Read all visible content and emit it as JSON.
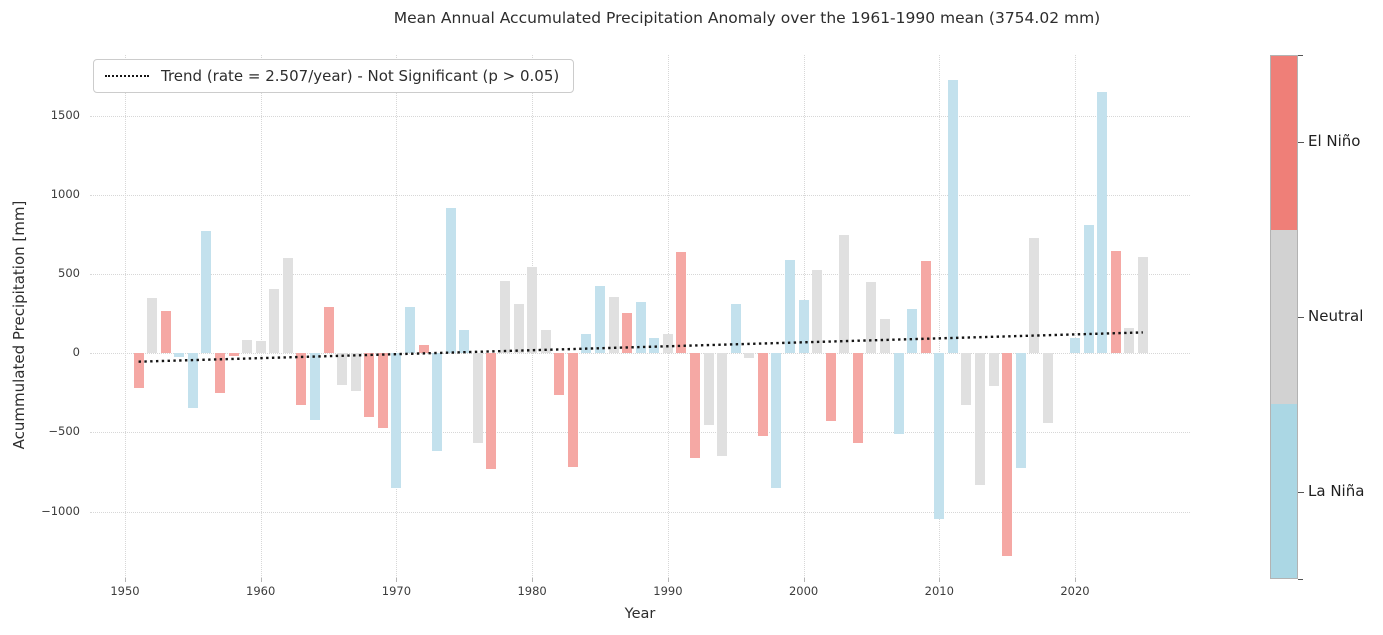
{
  "title": "Mean Annual Accumulated Precipitation Anomaly over the 1961-1990 mean (3754.02 mm)",
  "legend": {
    "trend_label": "Trend (rate = 2.507/year) - Not Significant (p > 0.05)"
  },
  "axes": {
    "xlabel": "Year",
    "ylabel": "Acummulated Precipitation [mm]",
    "ytick_labels": [
      "1500",
      "1000",
      "500",
      "0",
      "−500",
      "−1000"
    ]
  },
  "colorbar": {
    "segments": [
      {
        "key": "elnino",
        "label": "El Niño",
        "color": "#ef7f78"
      },
      {
        "key": "neutral",
        "label": "Neutral",
        "color": "#d2d2d2"
      },
      {
        "key": "lanina",
        "label": "La Niña",
        "color": "#abd7e4"
      }
    ]
  },
  "chart_data": {
    "type": "bar",
    "title": "Mean Annual Accumulated Precipitation Anomaly over the 1961-1990 mean (3754.02 mm)",
    "xlabel": "Year",
    "ylabel": "Acummulated Precipitation [mm]",
    "baseline_mean_mm": 3754.02,
    "baseline_period": "1961-1990",
    "units": "mm",
    "grid": "dotted",
    "legend_position": "upper left",
    "ylim": [
      -1420,
      1890
    ],
    "xlim": [
      1947.4,
      2028.5
    ],
    "yticks": [
      1500,
      1000,
      500,
      0,
      -500,
      -1000
    ],
    "xticks": [
      1950,
      1960,
      1970,
      1980,
      1990,
      2000,
      2010,
      2020
    ],
    "phases": {
      "elnino": {
        "label": "El Niño",
        "bar_color": "#f5a8a4",
        "colorbar_color": "#ef7f78"
      },
      "neutral": {
        "label": "Neutral",
        "bar_color": "#e0e0e0",
        "colorbar_color": "#d2d2d2"
      },
      "lanina": {
        "label": "La Niña",
        "bar_color": "#c3e1ed",
        "colorbar_color": "#abd7e4"
      }
    },
    "trend": {
      "label": "Trend (rate = 2.507/year) - Not Significant (p > 0.05)",
      "rate_per_year": 2.507,
      "significant": false,
      "p_note": "p > 0.05",
      "line_style": "dotted",
      "start_year": 1951,
      "start_value": -53,
      "end_year": 2025,
      "end_value": 132
    },
    "bars": [
      {
        "year": 1951,
        "value": -220,
        "phase": "elnino"
      },
      {
        "year": 1952,
        "value": 350,
        "phase": "neutral"
      },
      {
        "year": 1953,
        "value": 270,
        "phase": "elnino"
      },
      {
        "year": 1954,
        "value": -25,
        "phase": "lanina"
      },
      {
        "year": 1955,
        "value": -345,
        "phase": "lanina"
      },
      {
        "year": 1956,
        "value": 775,
        "phase": "lanina"
      },
      {
        "year": 1957,
        "value": -250,
        "phase": "elnino"
      },
      {
        "year": 1958,
        "value": -15,
        "phase": "elnino"
      },
      {
        "year": 1959,
        "value": 85,
        "phase": "neutral"
      },
      {
        "year": 1960,
        "value": 80,
        "phase": "neutral"
      },
      {
        "year": 1961,
        "value": 405,
        "phase": "neutral"
      },
      {
        "year": 1962,
        "value": 600,
        "phase": "neutral"
      },
      {
        "year": 1963,
        "value": -325,
        "phase": "elnino"
      },
      {
        "year": 1964,
        "value": -425,
        "phase": "lanina"
      },
      {
        "year": 1965,
        "value": 290,
        "phase": "elnino"
      },
      {
        "year": 1966,
        "value": -200,
        "phase": "neutral"
      },
      {
        "year": 1967,
        "value": -240,
        "phase": "neutral"
      },
      {
        "year": 1968,
        "value": -405,
        "phase": "elnino"
      },
      {
        "year": 1969,
        "value": -475,
        "phase": "elnino"
      },
      {
        "year": 1970,
        "value": -850,
        "phase": "lanina"
      },
      {
        "year": 1971,
        "value": 290,
        "phase": "lanina"
      },
      {
        "year": 1972,
        "value": 55,
        "phase": "elnino"
      },
      {
        "year": 1973,
        "value": -620,
        "phase": "lanina"
      },
      {
        "year": 1974,
        "value": 920,
        "phase": "lanina"
      },
      {
        "year": 1975,
        "value": 145,
        "phase": "lanina"
      },
      {
        "year": 1976,
        "value": -570,
        "phase": "neutral"
      },
      {
        "year": 1977,
        "value": -730,
        "phase": "elnino"
      },
      {
        "year": 1978,
        "value": 460,
        "phase": "neutral"
      },
      {
        "year": 1979,
        "value": 315,
        "phase": "neutral"
      },
      {
        "year": 1980,
        "value": 545,
        "phase": "neutral"
      },
      {
        "year": 1981,
        "value": 150,
        "phase": "neutral"
      },
      {
        "year": 1982,
        "value": -265,
        "phase": "elnino"
      },
      {
        "year": 1983,
        "value": -720,
        "phase": "elnino"
      },
      {
        "year": 1984,
        "value": 120,
        "phase": "lanina"
      },
      {
        "year": 1985,
        "value": 425,
        "phase": "lanina"
      },
      {
        "year": 1986,
        "value": 355,
        "phase": "neutral"
      },
      {
        "year": 1987,
        "value": 255,
        "phase": "elnino"
      },
      {
        "year": 1988,
        "value": 325,
        "phase": "lanina"
      },
      {
        "year": 1989,
        "value": 100,
        "phase": "lanina"
      },
      {
        "year": 1990,
        "value": 125,
        "phase": "neutral"
      },
      {
        "year": 1991,
        "value": 640,
        "phase": "elnino"
      },
      {
        "year": 1992,
        "value": -660,
        "phase": "elnino"
      },
      {
        "year": 1993,
        "value": -455,
        "phase": "neutral"
      },
      {
        "year": 1994,
        "value": -650,
        "phase": "neutral"
      },
      {
        "year": 1995,
        "value": 315,
        "phase": "lanina"
      },
      {
        "year": 1996,
        "value": -30,
        "phase": "neutral"
      },
      {
        "year": 1997,
        "value": -525,
        "phase": "elnino"
      },
      {
        "year": 1998,
        "value": -850,
        "phase": "lanina"
      },
      {
        "year": 1999,
        "value": 590,
        "phase": "lanina"
      },
      {
        "year": 2000,
        "value": 335,
        "phase": "lanina"
      },
      {
        "year": 2001,
        "value": 530,
        "phase": "neutral"
      },
      {
        "year": 2002,
        "value": -430,
        "phase": "elnino"
      },
      {
        "year": 2003,
        "value": 750,
        "phase": "neutral"
      },
      {
        "year": 2004,
        "value": -570,
        "phase": "elnino"
      },
      {
        "year": 2005,
        "value": 450,
        "phase": "neutral"
      },
      {
        "year": 2006,
        "value": 220,
        "phase": "neutral"
      },
      {
        "year": 2007,
        "value": -510,
        "phase": "lanina"
      },
      {
        "year": 2008,
        "value": 280,
        "phase": "lanina"
      },
      {
        "year": 2009,
        "value": 585,
        "phase": "elnino"
      },
      {
        "year": 2010,
        "value": -1045,
        "phase": "lanina"
      },
      {
        "year": 2011,
        "value": 1730,
        "phase": "lanina"
      },
      {
        "year": 2012,
        "value": -325,
        "phase": "neutral"
      },
      {
        "year": 2013,
        "value": -830,
        "phase": "neutral"
      },
      {
        "year": 2014,
        "value": -210,
        "phase": "neutral"
      },
      {
        "year": 2015,
        "value": -1280,
        "phase": "elnino"
      },
      {
        "year": 2016,
        "value": -725,
        "phase": "lanina"
      },
      {
        "year": 2017,
        "value": 730,
        "phase": "neutral"
      },
      {
        "year": 2018,
        "value": -440,
        "phase": "neutral"
      },
      {
        "year": 2019,
        "value": 0,
        "phase": "neutral"
      },
      {
        "year": 2020,
        "value": 100,
        "phase": "lanina"
      },
      {
        "year": 2021,
        "value": 810,
        "phase": "lanina"
      },
      {
        "year": 2022,
        "value": 1650,
        "phase": "lanina"
      },
      {
        "year": 2023,
        "value": 650,
        "phase": "elnino"
      },
      {
        "year": 2024,
        "value": 160,
        "phase": "neutral"
      },
      {
        "year": 2025,
        "value": 610,
        "phase": "neutral"
      }
    ]
  }
}
